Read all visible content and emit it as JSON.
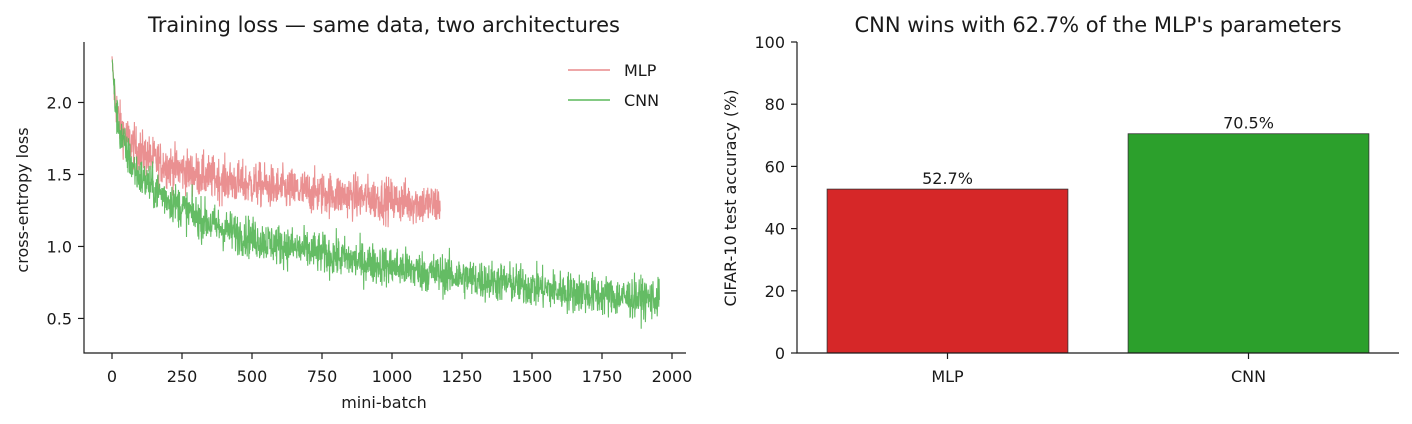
{
  "chart_data": [
    {
      "type": "line",
      "title": "Training loss — same data, two architectures",
      "xlabel": "mini-batch",
      "ylabel": "cross-entropy loss",
      "xlim": [
        -100,
        2050
      ],
      "ylim": [
        0.26,
        2.42
      ],
      "x_ticks": [
        0,
        250,
        500,
        750,
        1000,
        1250,
        1500,
        1750,
        2000
      ],
      "y_ticks": [
        0.5,
        1.0,
        1.5,
        2.0
      ],
      "x_tick_labels": [
        "0",
        "250",
        "500",
        "750",
        "1000",
        "1250",
        "1500",
        "1750",
        "2000"
      ],
      "y_tick_labels": [
        "0.5",
        "1.0",
        "1.5",
        "2.0"
      ],
      "legend_position": "top-right",
      "grid": false,
      "series": [
        {
          "name": "MLP",
          "color": "#e98a8b",
          "x": [
            0,
            10,
            20,
            30,
            50,
            75,
            100,
            150,
            200,
            250,
            300,
            350,
            400,
            450,
            500,
            550,
            600,
            650,
            700,
            750,
            800,
            850,
            900,
            950,
            1000,
            1050,
            1100,
            1150,
            1172
          ],
          "y": [
            2.3,
            2.05,
            1.92,
            1.84,
            1.76,
            1.7,
            1.66,
            1.6,
            1.56,
            1.53,
            1.5,
            1.48,
            1.46,
            1.44,
            1.43,
            1.42,
            1.4,
            1.39,
            1.38,
            1.37,
            1.36,
            1.35,
            1.34,
            1.33,
            1.32,
            1.31,
            1.3,
            1.29,
            1.29
          ],
          "noise": 0.075
        },
        {
          "name": "CNN",
          "color": "#5cb85c",
          "x": [
            0,
            10,
            20,
            30,
            50,
            75,
            100,
            150,
            200,
            250,
            300,
            350,
            400,
            500,
            600,
            700,
            800,
            900,
            1000,
            1100,
            1200,
            1300,
            1400,
            1500,
            1600,
            1700,
            1800,
            1900,
            1955
          ],
          "y": [
            2.3,
            2.02,
            1.88,
            1.78,
            1.66,
            1.55,
            1.48,
            1.4,
            1.33,
            1.27,
            1.21,
            1.16,
            1.12,
            1.06,
            1.01,
            0.97,
            0.93,
            0.89,
            0.86,
            0.83,
            0.8,
            0.77,
            0.75,
            0.72,
            0.69,
            0.67,
            0.65,
            0.64,
            0.63
          ],
          "noise": 0.07
        }
      ]
    },
    {
      "type": "bar",
      "title": "CNN wins with 62.7% of the MLP's parameters",
      "xlabel": "",
      "ylabel": "CIFAR-10 test accuracy (%)",
      "ylim": [
        0,
        100
      ],
      "y_ticks": [
        0,
        20,
        40,
        60,
        80,
        100
      ],
      "y_tick_labels": [
        "0",
        "20",
        "40",
        "60",
        "80",
        "100"
      ],
      "categories": [
        "MLP",
        "CNN"
      ],
      "values": [
        52.7,
        70.5
      ],
      "value_labels": [
        "52.7%",
        "70.5%"
      ],
      "colors": [
        "#d62728",
        "#2ca02c"
      ],
      "grid": false
    }
  ]
}
